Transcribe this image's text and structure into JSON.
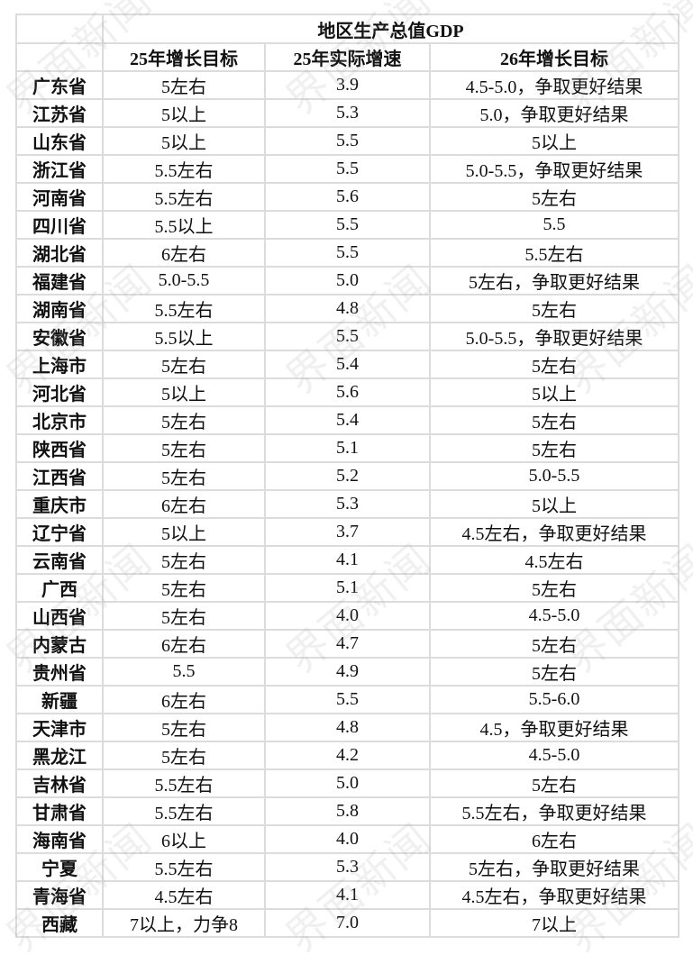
{
  "watermark": "界面新闻",
  "table": {
    "group_header": "地区生产总值GDP",
    "columns": [
      "",
      "25年增长目标",
      "25年实际增速",
      "26年增长目标"
    ],
    "rows": [
      [
        "广东省",
        "5左右",
        "3.9",
        "4.5-5.0，争取更好结果"
      ],
      [
        "江苏省",
        "5以上",
        "5.3",
        "5.0，争取更好结果"
      ],
      [
        "山东省",
        "5以上",
        "5.5",
        "5以上"
      ],
      [
        "浙江省",
        "5.5左右",
        "5.5",
        "5.0-5.5，争取更好结果"
      ],
      [
        "河南省",
        "5.5左右",
        "5.6",
        "5左右"
      ],
      [
        "四川省",
        "5.5以上",
        "5.5",
        "5.5"
      ],
      [
        "湖北省",
        "6左右",
        "5.5",
        "5.5左右"
      ],
      [
        "福建省",
        "5.0-5.5",
        "5.0",
        "5左右，争取更好结果"
      ],
      [
        "湖南省",
        "5.5左右",
        "4.8",
        "5左右"
      ],
      [
        "安徽省",
        "5.5以上",
        "5.5",
        "5.0-5.5，争取更好结果"
      ],
      [
        "上海市",
        "5左右",
        "5.4",
        "5左右"
      ],
      [
        "河北省",
        "5以上",
        "5.6",
        "5以上"
      ],
      [
        "北京市",
        "5左右",
        "5.4",
        "5左右"
      ],
      [
        "陕西省",
        "5左右",
        "5.1",
        "5左右"
      ],
      [
        "江西省",
        "5左右",
        "5.2",
        "5.0-5.5"
      ],
      [
        "重庆市",
        "6左右",
        "5.3",
        "5以上"
      ],
      [
        "辽宁省",
        "5以上",
        "3.7",
        "4.5左右，争取更好结果"
      ],
      [
        "云南省",
        "5左右",
        "4.1",
        "4.5左右"
      ],
      [
        "广西",
        "5左右",
        "5.1",
        "5左右"
      ],
      [
        "山西省",
        "5左右",
        "4.0",
        "4.5-5.0"
      ],
      [
        "内蒙古",
        "6左右",
        "4.7",
        "5左右"
      ],
      [
        "贵州省",
        "5.5",
        "4.9",
        "5左右"
      ],
      [
        "新疆",
        "6左右",
        "5.5",
        "5.5-6.0"
      ],
      [
        "天津市",
        "5左右",
        "4.8",
        "4.5，争取更好结果"
      ],
      [
        "黑龙江",
        "5左右",
        "4.2",
        "4.5-5.0"
      ],
      [
        "吉林省",
        "5.5左右",
        "5.0",
        "5左右"
      ],
      [
        "甘肃省",
        "5.5左右",
        "5.8",
        "5.5左右，争取更好结果"
      ],
      [
        "海南省",
        "6以上",
        "4.0",
        "6左右"
      ],
      [
        "宁夏",
        "5.5左右",
        "5.3",
        "5左右，争取更好结果"
      ],
      [
        "青海省",
        "4.5左右",
        "4.1",
        "4.5左右，争取更好结果"
      ],
      [
        "西藏",
        "7以上，力争8",
        "7.0",
        "7以上"
      ]
    ]
  }
}
